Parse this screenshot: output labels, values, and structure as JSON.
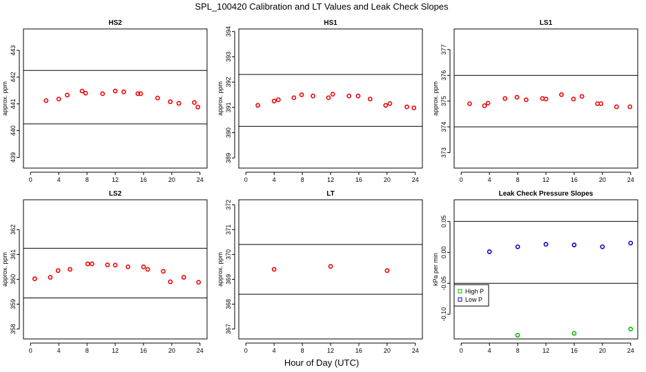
{
  "figure": {
    "title": "SPL_100420  Calibration and LT Values and Leak Check Slopes",
    "xlabel": "Hour of Day (UTC)"
  },
  "chart_data": [
    {
      "id": "hs2",
      "type": "scatter",
      "title": "HS2",
      "ylabel": "approx. ppm",
      "xlim": [
        -1,
        25
      ],
      "ylim": [
        438.6,
        443.8
      ],
      "xticks": [
        0,
        4,
        8,
        12,
        16,
        20,
        24
      ],
      "yticks": [
        439,
        440,
        441,
        442,
        443
      ],
      "hlines": [
        442.25,
        440.25
      ],
      "series": [
        {
          "name": "HS2",
          "color": "#ee0000",
          "x": [
            2.2,
            4.0,
            5.2,
            7.3,
            7.8,
            10.2,
            12.0,
            13.2,
            15.2,
            15.6,
            18.0,
            19.8,
            21.0,
            23.2,
            23.7
          ],
          "y": [
            441.12,
            441.18,
            441.33,
            441.48,
            441.4,
            441.38,
            441.48,
            441.45,
            441.38,
            441.38,
            441.22,
            441.08,
            441.02,
            441.05,
            440.88
          ]
        }
      ]
    },
    {
      "id": "hs1",
      "type": "scatter",
      "title": "HS1",
      "ylabel": "approx. ppm",
      "xlim": [
        -1,
        25
      ],
      "ylim": [
        388.6,
        394.1
      ],
      "xticks": [
        0,
        4,
        8,
        12,
        16,
        20,
        24
      ],
      "yticks": [
        389,
        390,
        391,
        392,
        393,
        394
      ],
      "hlines": [
        392.3,
        390.25
      ],
      "series": [
        {
          "name": "HS1",
          "color": "#ee0000",
          "x": [
            1.7,
            4.0,
            4.6,
            6.8,
            7.9,
            9.5,
            11.7,
            12.3,
            14.6,
            15.9,
            17.6,
            19.8,
            20.4,
            22.8,
            23.8
          ],
          "y": [
            391.08,
            391.25,
            391.3,
            391.38,
            391.5,
            391.45,
            391.38,
            391.52,
            391.45,
            391.45,
            391.33,
            391.08,
            391.15,
            391.02,
            390.98
          ]
        }
      ]
    },
    {
      "id": "ls1",
      "type": "scatter",
      "title": "LS1",
      "ylabel": "approx. ppm",
      "xlim": [
        -1,
        25
      ],
      "ylim": [
        372.4,
        377.8
      ],
      "xticks": [
        0,
        4,
        8,
        12,
        16,
        20,
        24
      ],
      "yticks": [
        373,
        374,
        375,
        376,
        377
      ],
      "hlines": [
        376.0,
        374.0
      ],
      "series": [
        {
          "name": "LS1",
          "color": "#ee0000",
          "x": [
            1.2,
            3.3,
            3.8,
            6.2,
            7.9,
            9.2,
            11.5,
            12.0,
            14.2,
            15.9,
            17.1,
            19.3,
            19.8,
            22.0,
            23.9
          ],
          "y": [
            374.9,
            374.82,
            374.92,
            375.1,
            375.15,
            375.05,
            375.1,
            375.08,
            375.25,
            375.08,
            375.18,
            374.9,
            374.9,
            374.78,
            374.78
          ]
        }
      ]
    },
    {
      "id": "ls2",
      "type": "scatter",
      "title": "LS2",
      "ylabel": "approx. ppm",
      "xlim": [
        -1,
        25
      ],
      "ylim": [
        357.6,
        363.2
      ],
      "xticks": [
        0,
        4,
        8,
        12,
        16,
        20,
        24
      ],
      "yticks": [
        358,
        359,
        360,
        361,
        362
      ],
      "hlines": [
        361.25,
        359.25
      ],
      "series": [
        {
          "name": "LS2",
          "color": "#ee0000",
          "x": [
            0.6,
            2.8,
            3.9,
            5.6,
            8.1,
            8.7,
            10.9,
            12.0,
            13.8,
            16.0,
            16.6,
            18.8,
            19.8,
            21.7,
            23.8
          ],
          "y": [
            360.02,
            360.08,
            360.35,
            360.4,
            360.62,
            360.62,
            360.58,
            360.57,
            360.5,
            360.5,
            360.4,
            360.32,
            359.9,
            360.08,
            359.88
          ]
        }
      ]
    },
    {
      "id": "lt",
      "type": "scatter",
      "title": "LT",
      "ylabel": "approx. ppm",
      "xlim": [
        -1,
        25
      ],
      "ylim": [
        366.6,
        372.2
      ],
      "xticks": [
        0,
        4,
        8,
        12,
        16,
        20,
        24
      ],
      "yticks": [
        367,
        368,
        369,
        370,
        371,
        372
      ],
      "hlines": [
        370.4,
        368.4
      ],
      "series": [
        {
          "name": "LT",
          "color": "#ee0000",
          "x": [
            4.0,
            12.0,
            20.0
          ],
          "y": [
            369.4,
            369.52,
            369.35
          ]
        }
      ]
    },
    {
      "id": "leak",
      "type": "scatter",
      "title": "Leak Check Pressure Slopes",
      "ylabel": "kPa per min",
      "xlim": [
        -1,
        25
      ],
      "ylim": [
        -0.14,
        0.085
      ],
      "xticks": [
        0,
        4,
        8,
        12,
        16,
        20,
        24
      ],
      "yticks": [
        -0.1,
        -0.05,
        0.0,
        0.05
      ],
      "ytick_labels": [
        "-0.10",
        "-0.05",
        "0.00",
        "0.05"
      ],
      "hlines": [
        0.05,
        -0.05
      ],
      "legend": {
        "position": "left",
        "entries": [
          "High P",
          "Low P"
        ]
      },
      "series": [
        {
          "name": "High P",
          "color": "#00bb00",
          "x": [
            8,
            16,
            24
          ],
          "y": [
            -0.134,
            -0.131,
            -0.124
          ]
        },
        {
          "name": "Low P",
          "color": "#0000cc",
          "x": [
            4,
            8,
            12,
            16,
            20,
            24
          ],
          "y": [
            0.001,
            0.009,
            0.013,
            0.012,
            0.009,
            0.015
          ]
        }
      ]
    }
  ]
}
